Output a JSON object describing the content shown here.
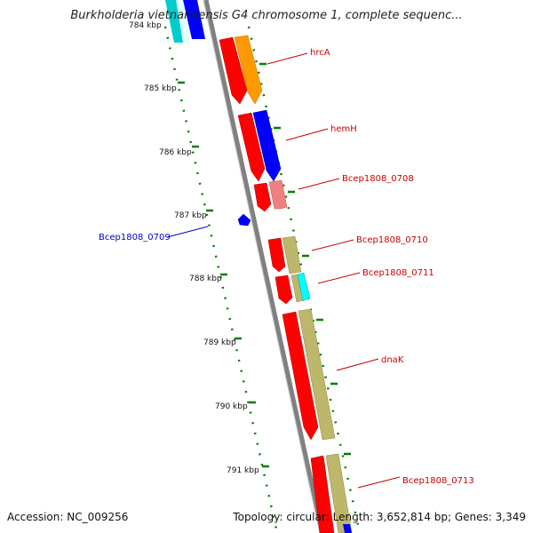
{
  "title": "Burkholderia vietnamiensis G4 chromosome 1, complete sequenc...",
  "footer": {
    "accession": "Accession: NC_009256",
    "summary": "Topology: circular; Length: 3,652,814 bp; Genes: 3,349"
  },
  "ticks": [
    {
      "label": "784 kbp",
      "kbp": 784
    },
    {
      "label": "785 kbp",
      "kbp": 785
    },
    {
      "label": "786 kbp",
      "kbp": 786
    },
    {
      "label": "787 kbp",
      "kbp": 787
    },
    {
      "label": "788 kbp",
      "kbp": 788
    },
    {
      "label": "789 kbp",
      "kbp": 789
    },
    {
      "label": "790 kbp",
      "kbp": 790
    },
    {
      "label": "791 kbp",
      "kbp": 791
    }
  ],
  "genes": [
    {
      "label": "hrcA",
      "strand": "+",
      "color": "#ff9900",
      "label_color": "#cc0000"
    },
    {
      "label": "hemH",
      "strand": "+",
      "color": "#0000ff",
      "label_color": "#cc0000"
    },
    {
      "label": "Bcep1808_0708",
      "strand": "+",
      "color": "#f08080",
      "label_color": "#cc0000"
    },
    {
      "label": "Bcep1808_0709",
      "strand": "-",
      "color": "#0000ff",
      "label_color": "#0000cc"
    },
    {
      "label": "Bcep1808_0710",
      "strand": "+",
      "color": "#bdb76b",
      "label_color": "#cc0000"
    },
    {
      "label": "Bcep1808_0711",
      "strand": "+",
      "color": "#00ffff",
      "label_color": "#cc0000"
    },
    {
      "label": "dnaK",
      "strand": "+",
      "color": "#bdb76b",
      "label_color": "#cc0000"
    },
    {
      "label": "Bcep1808_0713",
      "strand": "+",
      "color": "#bdb76b",
      "label_color": "#cc0000"
    }
  ],
  "colors": {
    "cds": "#ff0000",
    "backbone": "#808080",
    "tick_dots": "#008000"
  }
}
